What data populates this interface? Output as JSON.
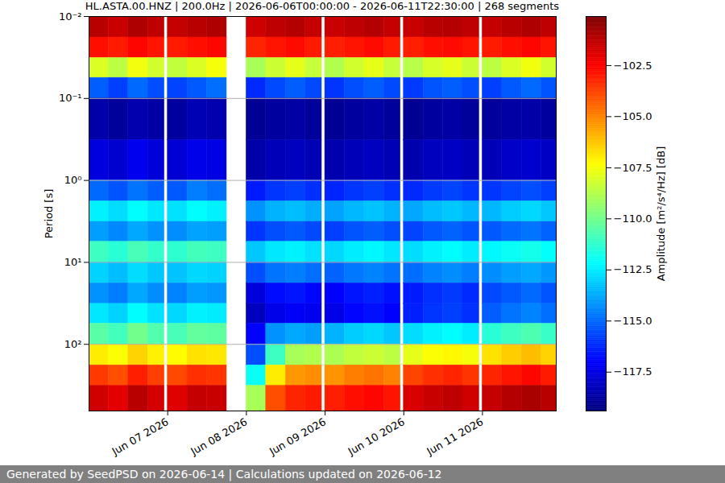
{
  "chart_data": {
    "type": "heatmap",
    "title": "HL.ASTA.00.HNZ | 200.0Hz | 2026-06-06T00:00:00 - 2026-06-11T22:30:00 | 268 segments",
    "footer": "Generated by SeedPSD on 2026-06-14 | Calculations updated on 2026-06-12",
    "y_label": "Period [s]",
    "log": "y",
    "grid": "y",
    "xlim": [
      "2026-06-06T00:00",
      "2026-06-11T22:30"
    ],
    "xticks": [
      {
        "value": "2026-06-07T00:00",
        "label": "Jun 07 2026"
      },
      {
        "value": "2026-06-08T00:00",
        "label": "Jun 08 2026"
      },
      {
        "value": "2026-06-09T00:00",
        "label": "Jun 09 2026"
      },
      {
        "value": "2026-06-10T00:00",
        "label": "Jun 10 2026"
      },
      {
        "value": "2026-06-11T00:00",
        "label": "Jun 11 2026"
      }
    ],
    "ylim": [
      0.01,
      650
    ],
    "yticks": [
      {
        "value": 0.01,
        "label": "10⁻²"
      },
      {
        "value": 0.1,
        "label": "10⁻¹"
      },
      {
        "value": 1,
        "label": "10⁰"
      },
      {
        "value": 10,
        "label": "10¹"
      },
      {
        "value": 100,
        "label": "10²"
      }
    ],
    "x_bins": [
      "2026-06-06T00:00",
      "2026-06-06T06:00",
      "2026-06-06T12:00",
      "2026-06-06T18:00",
      "2026-06-06T23:00",
      "2026-06-07T00:00",
      "2026-06-07T06:00",
      "2026-06-07T12:00",
      "2026-06-07T18:00",
      "2026-06-08T00:00",
      "2026-06-08T06:00",
      "2026-06-08T12:00",
      "2026-06-08T18:00",
      "2026-06-08T23:00",
      "2026-06-09T00:00",
      "2026-06-09T06:00",
      "2026-06-09T12:00",
      "2026-06-09T18:00",
      "2026-06-09T23:00",
      "2026-06-10T00:00",
      "2026-06-10T06:00",
      "2026-06-10T12:00",
      "2026-06-10T18:00",
      "2026-06-10T23:00",
      "2026-06-11T00:00",
      "2026-06-11T06:00",
      "2026-06-11T12:00",
      "2026-06-11T18:00",
      "2026-06-11T22:30"
    ],
    "y_bins": [
      0.01,
      0.018,
      0.032,
      0.056,
      0.1,
      0.32,
      1,
      1.8,
      3.2,
      5.6,
      10,
      18,
      32,
      56,
      100,
      180,
      320,
      650
    ],
    "z": [
      [
        -101.2,
        -101.5,
        -101.0,
        -101.3,
        null,
        -101.4,
        -101.2,
        -101.0,
        null,
        -101.6,
        -101.3,
        -101.1,
        -101.4,
        null,
        -101.5,
        -101.3,
        -101.1,
        -101.4,
        null,
        -101.5,
        -101.2,
        -101.1,
        -101.3,
        null,
        -101.4,
        -101.2,
        -101.0,
        -101.3
      ],
      [
        -102.8,
        -103.0,
        -102.6,
        -102.9,
        null,
        -103.0,
        -102.8,
        -102.6,
        null,
        -103.2,
        -102.9,
        -102.7,
        -103.0,
        null,
        -103.1,
        -102.9,
        -102.7,
        -103.0,
        null,
        -103.1,
        -102.8,
        -102.7,
        -102.9,
        null,
        -103.0,
        -102.8,
        -102.6,
        -102.9
      ],
      [
        -108.0,
        -108.6,
        -107.6,
        -108.2,
        null,
        -108.5,
        -108.0,
        -107.5,
        null,
        -109.0,
        -108.3,
        -107.8,
        -108.4,
        null,
        -108.8,
        -108.2,
        -107.8,
        -108.4,
        null,
        -108.7,
        -108.1,
        -107.8,
        -108.3,
        null,
        -108.6,
        -108.0,
        -107.6,
        -108.2
      ],
      [
        -115.2,
        -115.8,
        -115.0,
        -115.5,
        null,
        -115.7,
        -115.3,
        -114.9,
        null,
        -116.2,
        -115.6,
        -115.2,
        -115.6,
        null,
        -116.0,
        -115.5,
        -115.2,
        -115.6,
        null,
        -115.9,
        -115.4,
        -115.2,
        -115.5,
        null,
        -115.8,
        -115.3,
        -115.0,
        -115.4
      ],
      [
        -118.6,
        -118.9,
        -118.5,
        -118.7,
        null,
        -118.8,
        -118.4,
        -118.5,
        null,
        -119.0,
        -118.8,
        -118.7,
        -118.9,
        null,
        -119.0,
        -118.8,
        -118.7,
        -118.9,
        null,
        -119.0,
        -118.8,
        -118.7,
        -118.9,
        null,
        -118.9,
        -118.7,
        -118.6,
        -118.8
      ],
      [
        -117.6,
        -117.9,
        -117.3,
        -117.7,
        null,
        -117.8,
        -117.4,
        -117.5,
        null,
        -118.6,
        -118.3,
        -118.2,
        -118.4,
        null,
        -118.5,
        -118.3,
        -118.2,
        -118.4,
        null,
        -118.5,
        -118.2,
        -118.1,
        -118.3,
        null,
        -118.3,
        -118.0,
        -117.9,
        -118.1
      ],
      [
        -115.0,
        -115.4,
        -114.8,
        -115.2,
        null,
        -115.3,
        -114.6,
        -114.9,
        null,
        -116.5,
        -116.0,
        -115.8,
        -116.1,
        null,
        -116.3,
        -116.0,
        -115.8,
        -116.1,
        null,
        -116.2,
        -115.9,
        -115.7,
        -116.0,
        null,
        -116.0,
        -115.7,
        -115.5,
        -115.8
      ],
      [
        -112.4,
        -112.8,
        -112.2,
        -112.6,
        null,
        -112.7,
        -112.2,
        -112.4,
        null,
        -114.2,
        -113.6,
        -113.4,
        -113.7,
        null,
        -113.9,
        -113.5,
        -113.3,
        -113.6,
        null,
        -113.8,
        -113.4,
        -113.2,
        -113.5,
        null,
        -113.5,
        -113.1,
        -112.9,
        -113.2
      ],
      [
        -114.0,
        -114.4,
        -113.8,
        -114.2,
        null,
        -114.3,
        -113.9,
        -114.0,
        null,
        -116.0,
        -115.5,
        -115.3,
        -115.6,
        null,
        -115.8,
        -115.4,
        -115.2,
        -115.5,
        null,
        -115.7,
        -115.3,
        -115.1,
        -115.4,
        null,
        -115.3,
        -115.0,
        -114.8,
        -115.1
      ],
      [
        -111.0,
        -111.4,
        -110.8,
        -111.2,
        null,
        -111.3,
        -110.9,
        -111.0,
        null,
        -113.2,
        -112.6,
        -112.4,
        -112.7,
        null,
        -112.9,
        -112.5,
        -112.3,
        -112.6,
        null,
        -112.8,
        -112.4,
        -112.2,
        -112.5,
        null,
        -112.3,
        -112.0,
        -111.8,
        -112.1
      ],
      [
        -113.0,
        -113.4,
        -112.8,
        -113.2,
        null,
        -113.3,
        -112.9,
        -113.0,
        null,
        -115.5,
        -114.8,
        -114.6,
        -114.9,
        null,
        -115.1,
        -114.7,
        -114.5,
        -114.8,
        null,
        -114.9,
        -114.5,
        -114.3,
        -114.6,
        null,
        -114.3,
        -114.0,
        -113.8,
        -114.1
      ],
      [
        -114.2,
        -114.6,
        -113.8,
        -114.3,
        null,
        -114.5,
        -114.0,
        -114.1,
        null,
        -117.6,
        -116.8,
        -116.6,
        -116.9,
        null,
        -117.0,
        -116.6,
        -116.4,
        -116.7,
        null,
        -116.5,
        -116.1,
        -115.9,
        -116.2,
        null,
        -115.6,
        -115.3,
        -115.0,
        -115.4
      ],
      [
        -112.6,
        -113.0,
        -112.2,
        -112.7,
        null,
        -112.9,
        -112.4,
        -112.5,
        null,
        -118.2,
        -117.4,
        -117.1,
        -117.3,
        null,
        -117.4,
        -116.9,
        -116.7,
        -117.0,
        null,
        -116.4,
        -116.0,
        -115.8,
        -116.1,
        null,
        -115.2,
        -114.8,
        -114.5,
        -114.9
      ],
      [
        -110.5,
        -110.9,
        -110.0,
        -110.6,
        null,
        -110.8,
        -110.3,
        -110.4,
        null,
        -117.0,
        -114.2,
        -113.8,
        -114.0,
        null,
        -113.6,
        -113.1,
        -112.9,
        -113.2,
        null,
        -112.8,
        -112.4,
        -112.2,
        -112.5,
        null,
        -111.4,
        -111.0,
        -110.7,
        -111.1
      ],
      [
        -107.0,
        -107.4,
        -106.5,
        -107.1,
        null,
        -107.3,
        -106.8,
        -106.9,
        null,
        -115.5,
        -111.0,
        -109.0,
        -108.8,
        null,
        -108.9,
        -108.5,
        -108.3,
        -108.6,
        null,
        -107.8,
        -107.4,
        -107.2,
        -107.5,
        null,
        -106.8,
        -106.4,
        -106.1,
        -106.5
      ],
      [
        -103.6,
        -104.0,
        -103.1,
        -103.7,
        null,
        -103.9,
        -103.4,
        -103.5,
        null,
        -112.0,
        -107.0,
        -105.4,
        -105.2,
        null,
        -105.3,
        -104.9,
        -104.7,
        -105.0,
        null,
        -103.8,
        -103.4,
        -103.2,
        -103.5,
        null,
        -103.2,
        -102.9,
        -102.6,
        -103.0
      ],
      [
        -101.6,
        -102.0,
        -101.2,
        -101.7,
        null,
        -101.9,
        -101.4,
        -101.5,
        null,
        -109.0,
        -104.0,
        -103.2,
        -103.0,
        null,
        -103.1,
        -102.8,
        -102.6,
        -102.9,
        null,
        -101.8,
        -101.5,
        -101.3,
        -101.6,
        null,
        -101.4,
        -101.1,
        -100.9,
        -101.2
      ]
    ],
    "colorbar": {
      "label": "Amplitude [m²/s⁴/Hz] [dB]",
      "range": [
        -119.4,
        -100.1
      ],
      "ticks": [
        {
          "value": -102.5,
          "label": "−102.5"
        },
        {
          "value": -105,
          "label": "−105.0"
        },
        {
          "value": -107.5,
          "label": "−107.5"
        },
        {
          "value": -110,
          "label": "−110.0"
        },
        {
          "value": -112.5,
          "label": "−112.5"
        },
        {
          "value": -115,
          "label": "−115.0"
        },
        {
          "value": -117.5,
          "label": "−117.5"
        }
      ]
    }
  }
}
